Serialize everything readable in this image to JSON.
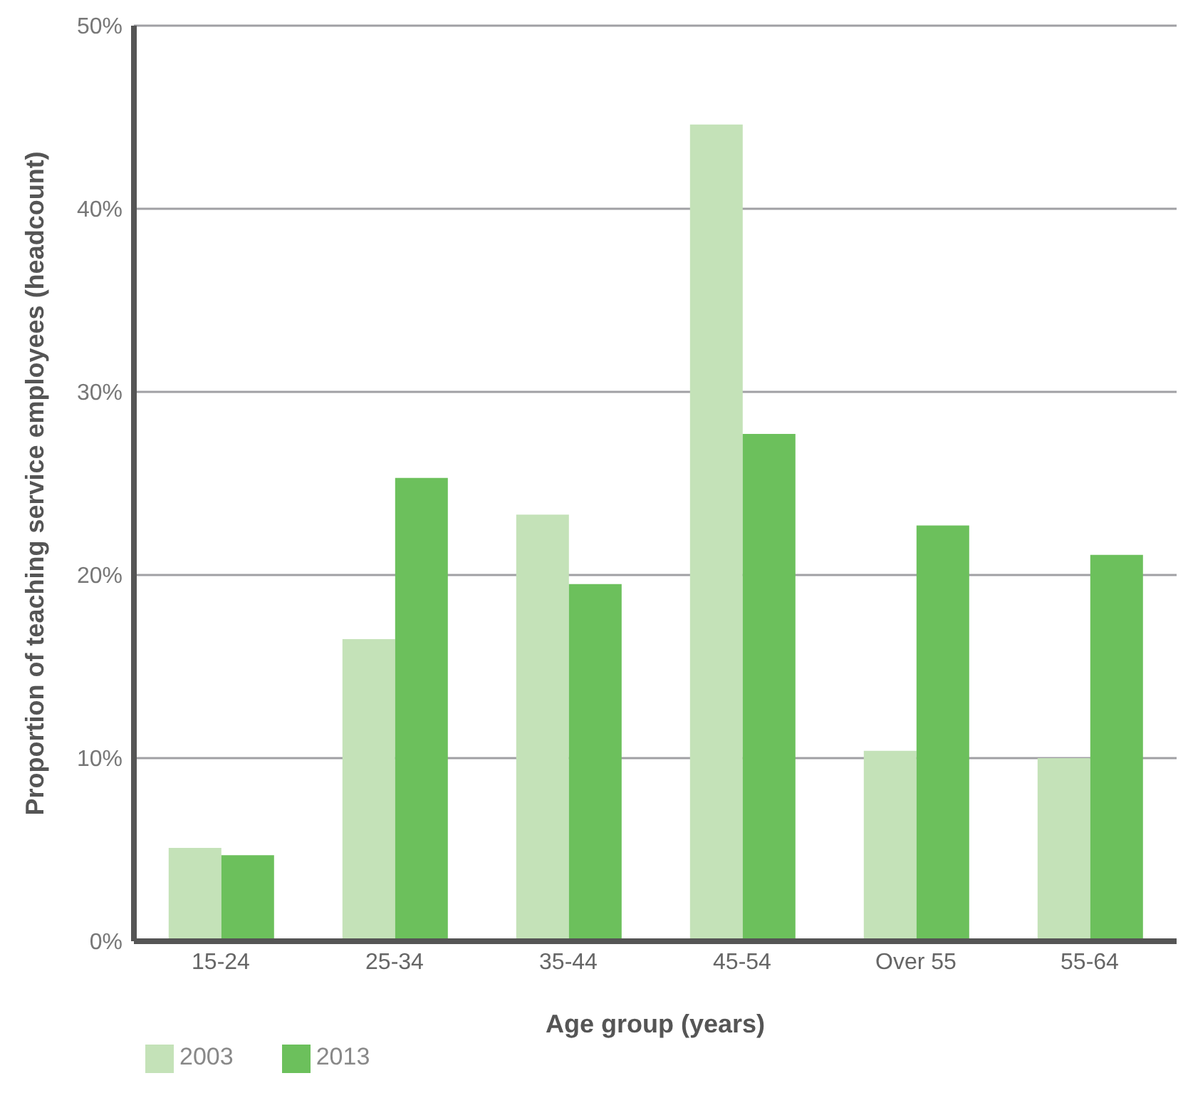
{
  "chart_data": {
    "type": "bar",
    "xlabel": "Age group (years)",
    "ylabel": "Proportion of teaching service employees (headcount)",
    "categories": [
      "15-24",
      "25-34",
      "35-44",
      "45-54",
      "Over 55",
      "55-64"
    ],
    "series": [
      {
        "name": "2003",
        "color": "#c4e2b8",
        "values": [
          5.1,
          16.5,
          23.3,
          44.6,
          10.4,
          10.0
        ]
      },
      {
        "name": "2013",
        "color": "#6cc05c",
        "values": [
          4.7,
          25.3,
          19.5,
          27.7,
          22.7,
          21.1
        ]
      }
    ],
    "ylim": [
      0,
      50
    ],
    "yticks": [
      {
        "value": 0,
        "label": "0%"
      },
      {
        "value": 10,
        "label": "10%"
      },
      {
        "value": 20,
        "label": "20%"
      },
      {
        "value": 30,
        "label": "30%"
      },
      {
        "value": 40,
        "label": "40%"
      },
      {
        "value": 50,
        "label": "50%"
      }
    ],
    "grid": "y",
    "legend": "bottom left"
  }
}
